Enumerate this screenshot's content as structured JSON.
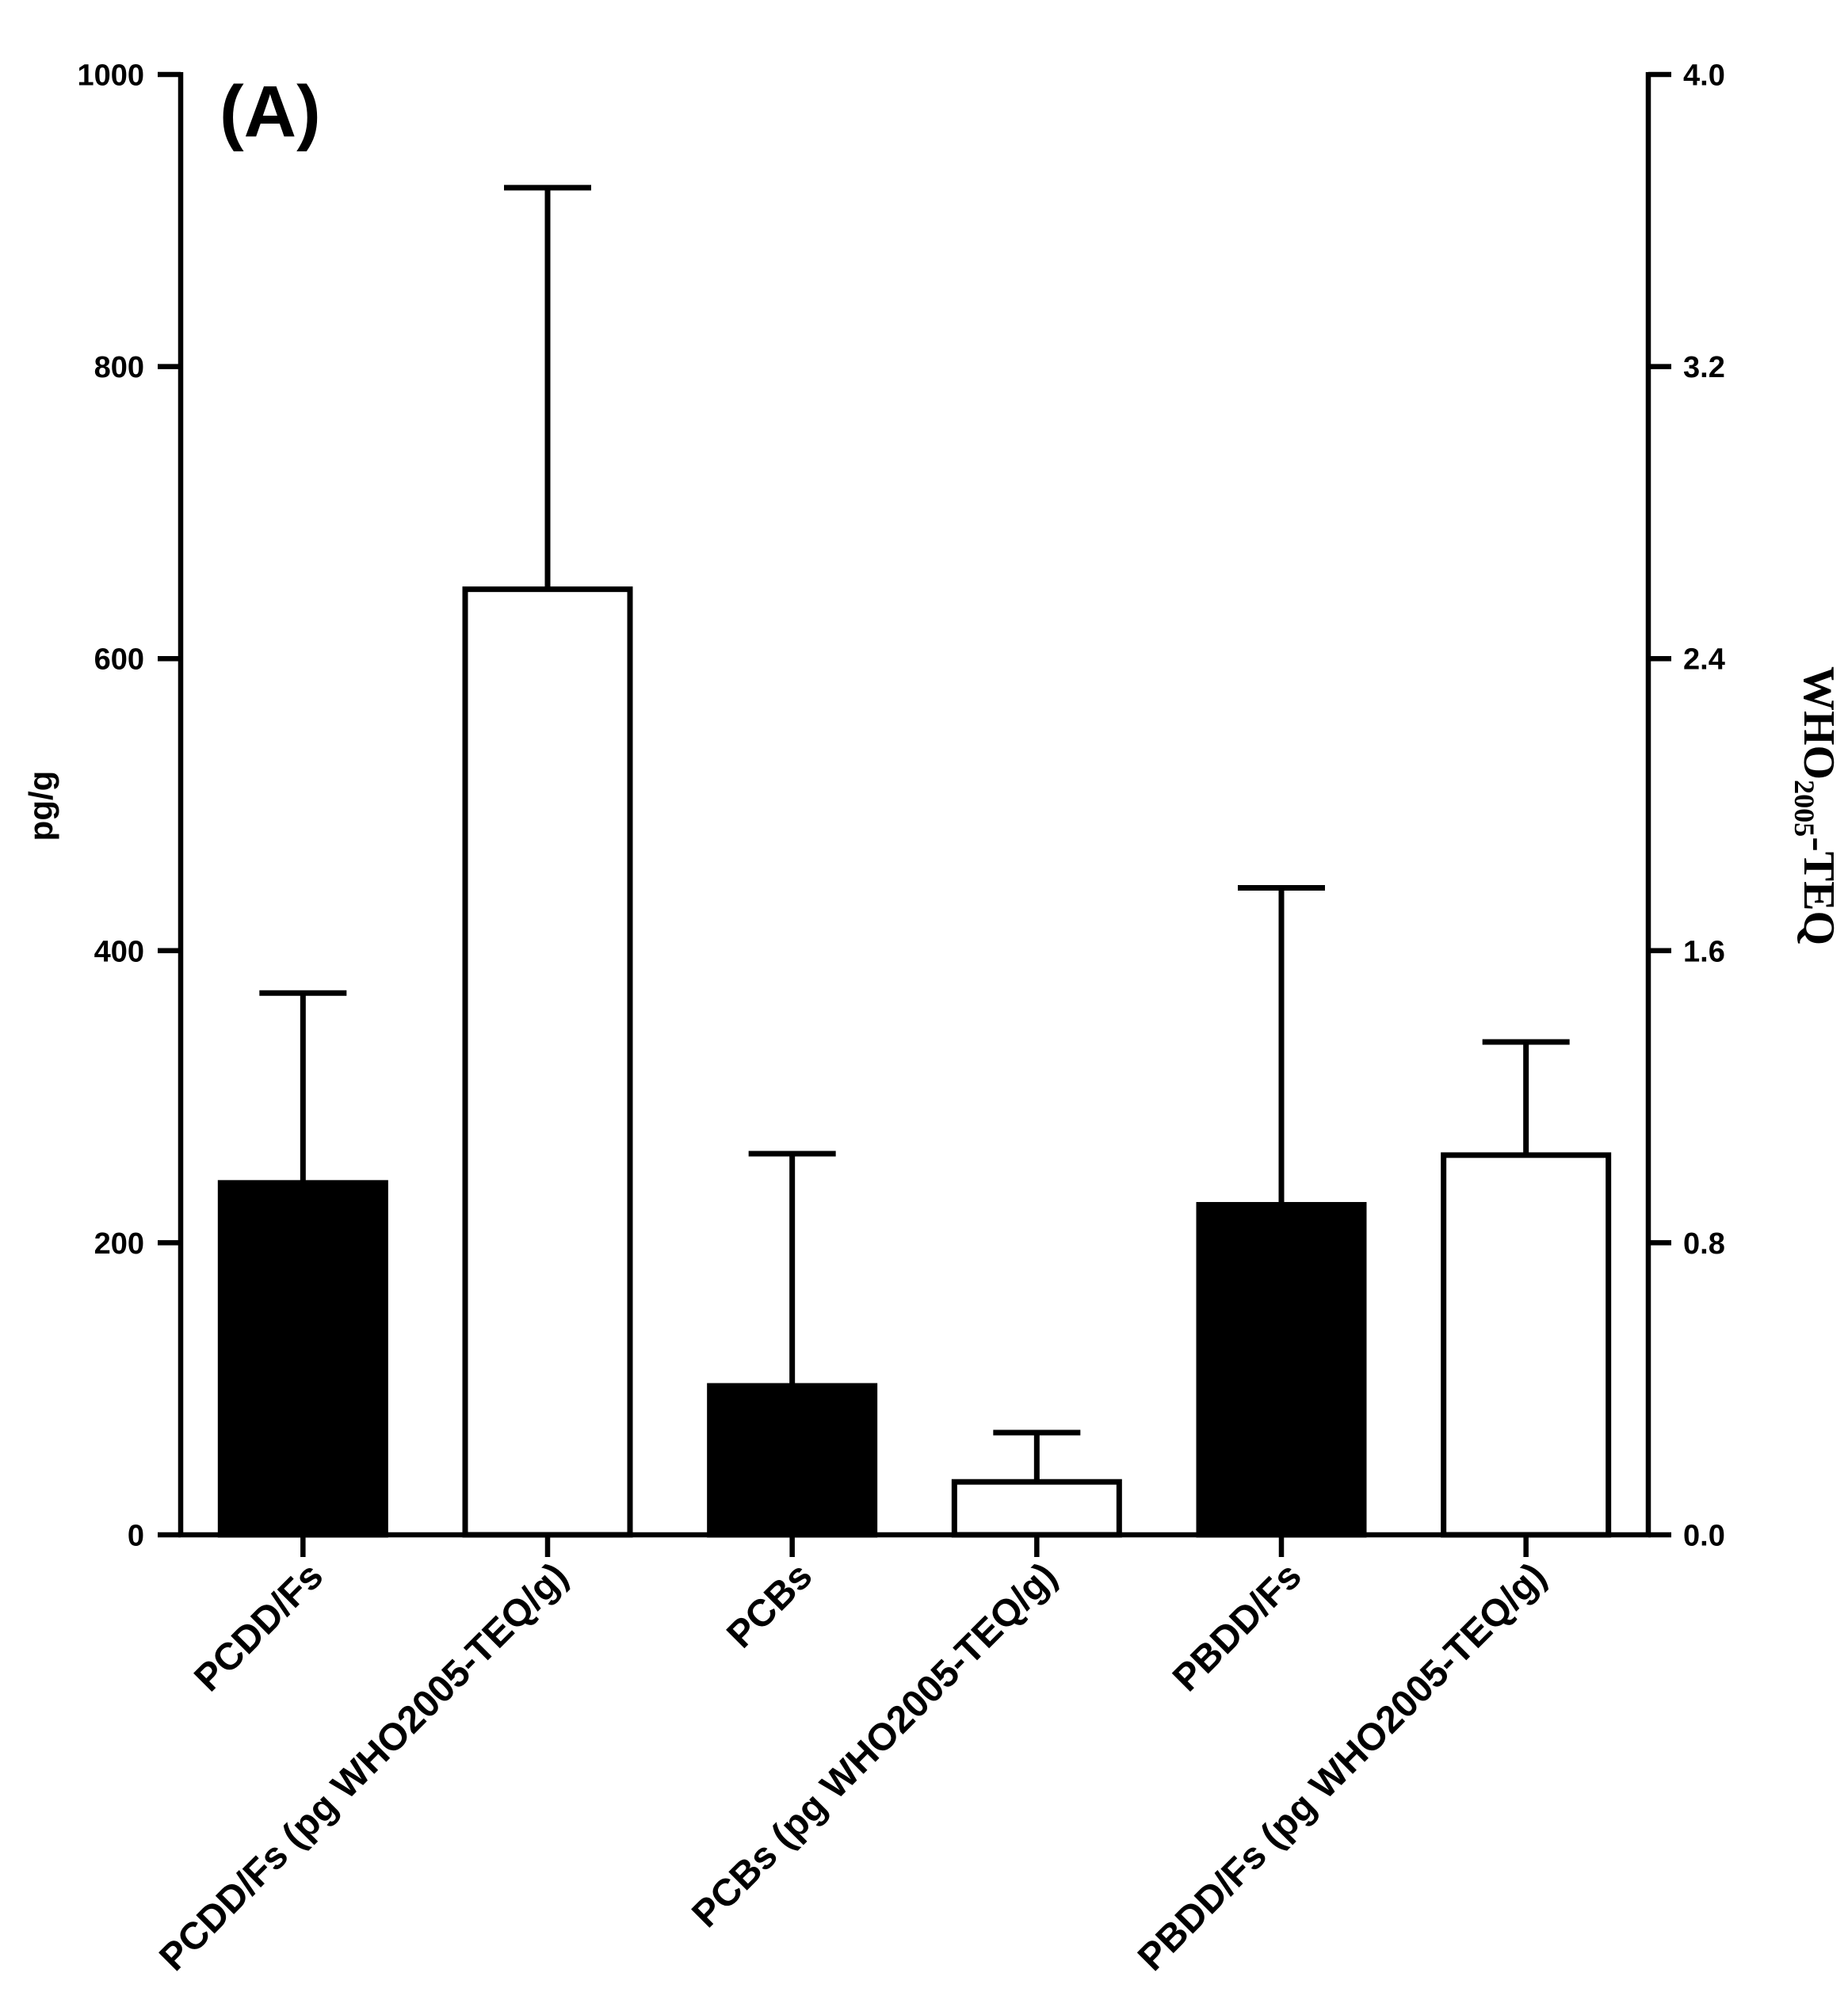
{
  "chart_data": {
    "type": "bar",
    "panel_label": "(A)",
    "categories": [
      "PCDD/Fs",
      "PCDD/Fs (pg WHO2005-TEQ/g)",
      "PCBs",
      "PCBs (pg WHO2005-TEQ/g)",
      "PBDD/Fs",
      "PBDD/Fs (pg WHO2005-TEQ/g)"
    ],
    "series": [
      {
        "y_axis": "left",
        "fill": "#000000",
        "values": [
          241,
          null,
          102,
          null,
          226,
          null
        ],
        "error_upper": [
          371,
          null,
          261,
          null,
          443,
          null
        ]
      },
      {
        "y_axis": "right",
        "fill": "#ffffff",
        "values": [
          null,
          2.59,
          null,
          0.145,
          null,
          1.04
        ],
        "error_upper": [
          null,
          3.69,
          null,
          0.28,
          null,
          1.35
        ]
      }
    ],
    "y_left": {
      "label": "pg/g",
      "range": [
        0,
        1000
      ],
      "ticks": [
        0,
        200,
        400,
        600,
        800,
        1000
      ],
      "tick_labels": [
        "0",
        "200",
        "400",
        "600",
        "800",
        "1000"
      ]
    },
    "y_right": {
      "label": {
        "main": "WHO",
        "sub": "2005",
        "tail": "-TEQ"
      },
      "range": [
        0,
        4.0
      ],
      "ticks": [
        0,
        0.8,
        1.6,
        2.4,
        3.2,
        4.0
      ],
      "tick_labels": [
        "0.0",
        "0.8",
        "1.6",
        "2.4",
        "3.2",
        "4.0"
      ]
    },
    "grid": false,
    "legend": "none",
    "colors": {
      "axis": "#000000",
      "outline": "#000000"
    }
  }
}
